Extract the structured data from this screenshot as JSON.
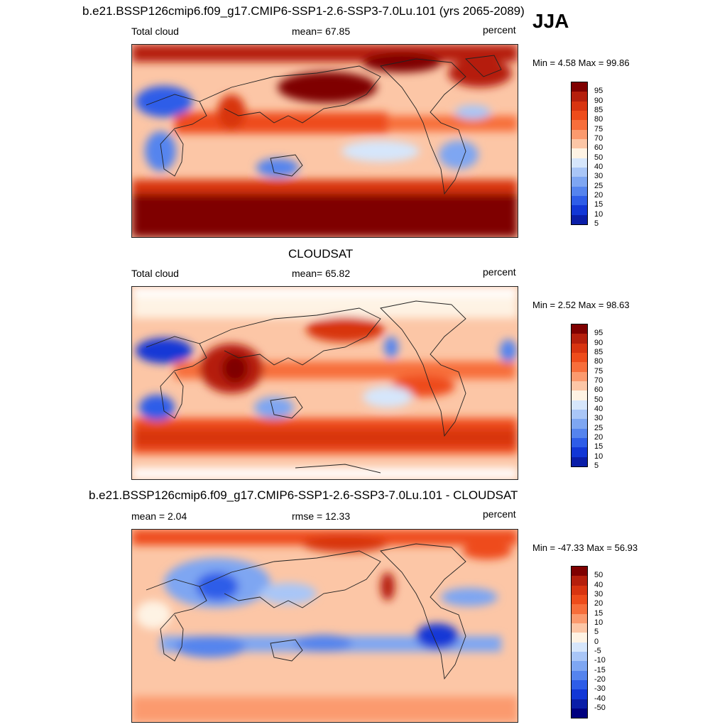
{
  "header": {
    "title": "b.e21.BSSP126cmip6.f09_g17.CMIP6-SSP1-2.6-SSP3-7.0Lu.101 (yrs 2065-2089)",
    "season": "JJA"
  },
  "panels": [
    {
      "title": "",
      "left": "Total cloud",
      "center": "mean=  67.85",
      "right": "percent",
      "minmax": "Min =   4.58 Max =  99.86",
      "colorbar_labels": [
        "95",
        "90",
        "85",
        "80",
        "75",
        "70",
        "60",
        "50",
        "40",
        "30",
        "25",
        "20",
        "15",
        "10",
        "5"
      ]
    },
    {
      "title": "CLOUDSAT",
      "left": "Total cloud",
      "center": "mean=  65.82",
      "right": "percent",
      "minmax": "Min =   2.52 Max =  98.63",
      "colorbar_labels": [
        "95",
        "90",
        "85",
        "80",
        "75",
        "70",
        "60",
        "50",
        "40",
        "30",
        "25",
        "20",
        "15",
        "10",
        "5"
      ]
    },
    {
      "title": "b.e21.BSSP126cmip6.f09_g17.CMIP6-SSP1-2.6-SSP3-7.0Lu.101 - CLOUDSAT",
      "left": "mean =   2.04",
      "center": "rmse =  12.33",
      "right": "percent",
      "minmax": "Min = -47.33 Max =  56.93",
      "colorbar_labels": [
        "50",
        "40",
        "30",
        "20",
        "15",
        "10",
        "5",
        "0",
        "-5",
        "-10",
        "-15",
        "-20",
        "-30",
        "-40",
        "-50"
      ]
    }
  ],
  "colors": {
    "colorbar_top_to_bottom": [
      "#7f0000",
      "#b51f0c",
      "#d83410",
      "#ee4c1b",
      "#f76e3b",
      "#fb9a6e",
      "#fcc6a6",
      "#fef3e4",
      "#d6e6fb",
      "#a9c6f7",
      "#7ea6f2",
      "#5584ee",
      "#2e5de8",
      "#1237d6",
      "#0a1ea8",
      "#00007f"
    ]
  }
}
